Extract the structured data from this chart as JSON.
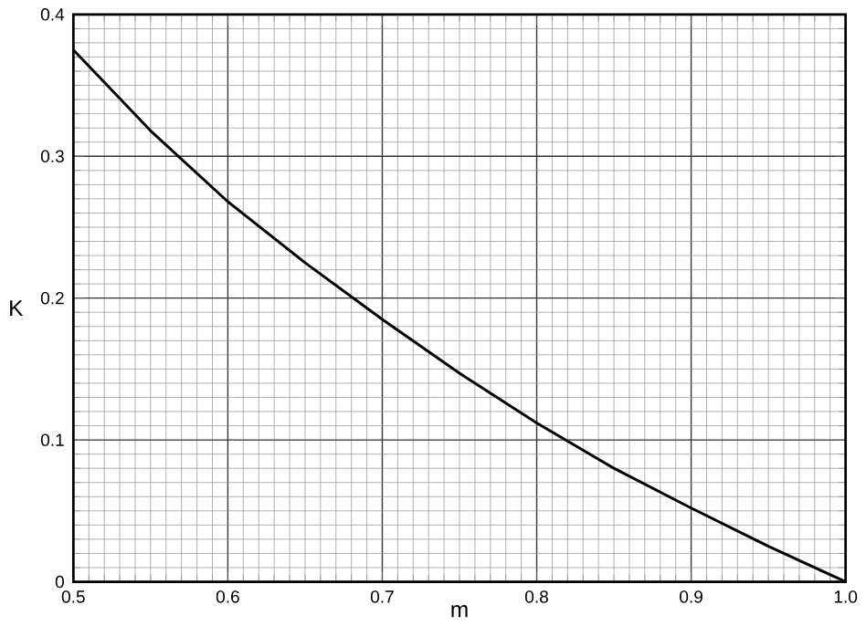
{
  "chart_data": {
    "type": "line",
    "xlabel": "m",
    "ylabel": "K",
    "x": [
      0.5,
      0.55,
      0.6,
      0.65,
      0.7,
      0.75,
      0.8,
      0.85,
      0.9,
      0.95,
      1.0
    ],
    "series": [
      {
        "color": "#000000",
        "values": [
          0.375,
          0.318,
          0.268,
          0.225,
          0.185,
          0.147,
          0.112,
          0.08,
          0.052,
          0.025,
          0
        ]
      }
    ],
    "xlim": [
      0.5,
      1.0
    ],
    "ylim": [
      0,
      0.4
    ],
    "xticks": [
      0.5,
      0.6,
      0.7,
      0.8,
      0.9,
      {
        "value": 1.0,
        "label": "1.0"
      }
    ],
    "yticks": [
      0,
      0.1,
      0.2,
      0.3,
      0.4
    ],
    "grid": true,
    "marker": "none",
    "line_style": "solid"
  }
}
